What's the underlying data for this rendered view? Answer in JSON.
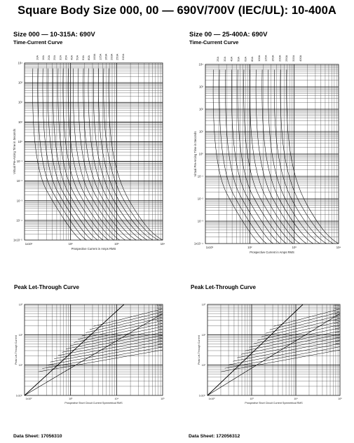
{
  "title": "Square Body Size 000, 00 — 690V/700V (IEC/UL):  10-400A",
  "panels": [
    {
      "heading": "Size 000 — 10-315A: 690V",
      "subheading": "Time-Current Curve",
      "tcc_ratings": [
        "10A",
        "16A",
        "20A",
        "25A",
        "32A",
        "35A",
        "40A",
        "50A",
        "63A",
        "80A",
        "100A",
        "125A",
        "160A",
        "200A",
        "250A",
        "315A"
      ],
      "tcc_y_ticks": [
        "10⁴",
        "10³",
        "10²",
        "10¹",
        "10⁰",
        "10⁻¹",
        "10⁻²",
        "10⁻³",
        "10⁻⁴",
        "1x10⁻⁵"
      ],
      "tcc_x_ticks": [
        "1x10¹",
        "10²",
        "10³",
        "10⁴"
      ],
      "tcc_ylabel": "Virtual Pre-Arcing Time in Seconds",
      "tcc_xlabel": "Prospective Current in Amps RMS",
      "plt_title": "Peak Let-Through Curve",
      "plt_ratings": [
        "315A",
        "250A",
        "200A",
        "160A",
        "125A",
        "100A",
        "80A",
        "63A",
        "50A",
        "40A",
        "32A",
        "25A",
        "20A",
        "16A",
        "10A"
      ],
      "plt_y_ticks": [
        "10³",
        "10²",
        "10¹",
        "1x10⁰"
      ],
      "plt_x_ticks": [
        "1x10²",
        "10³",
        "10⁴",
        "10⁵"
      ],
      "plt_ylabel": "Peak Let-Through Current",
      "plt_xlabel": "Prospective Short Circuit Current Symmetrical RMS",
      "datasheet": "Data Sheet: 17056310"
    },
    {
      "heading": "Size 00 — 25-400A: 690V",
      "subheading": "Time-Current Curve",
      "tcc_ratings": [
        "25A",
        "32A",
        "40A",
        "50A",
        "63A",
        "80A",
        "100A",
        "125A",
        "160A",
        "200A",
        "250A",
        "315A",
        "400A"
      ],
      "tcc_y_ticks": [
        "10⁴",
        "10³",
        "10²",
        "10¹",
        "10⁰",
        "10⁻¹",
        "10⁻²",
        "10⁻³",
        "1x10⁻⁴"
      ],
      "tcc_x_ticks": [
        "1x10¹",
        "10²",
        "10³",
        "10⁴"
      ],
      "tcc_ylabel": "Virtual Pre-Arcing Time in Seconds",
      "tcc_xlabel": "Prospective Current in Amps RMS",
      "plt_title": "Peak Let-Through Curve",
      "plt_ratings": [
        "400A",
        "355A",
        "315A",
        "250A",
        "200A",
        "160A",
        "125A",
        "100A",
        "80A",
        "63A",
        "50A",
        "40A",
        "32A",
        "25A"
      ],
      "plt_y_ticks": [
        "10³",
        "10²",
        "10¹",
        "1x10⁰"
      ],
      "plt_x_ticks": [
        "1x10²",
        "10³",
        "10⁴",
        "10⁵"
      ],
      "plt_ylabel": "Peak Let-Through Current",
      "plt_xlabel": "Prospective Short Circuit Current Symmetrical RMS",
      "datasheet": "Data Sheet: 172056312"
    }
  ]
}
